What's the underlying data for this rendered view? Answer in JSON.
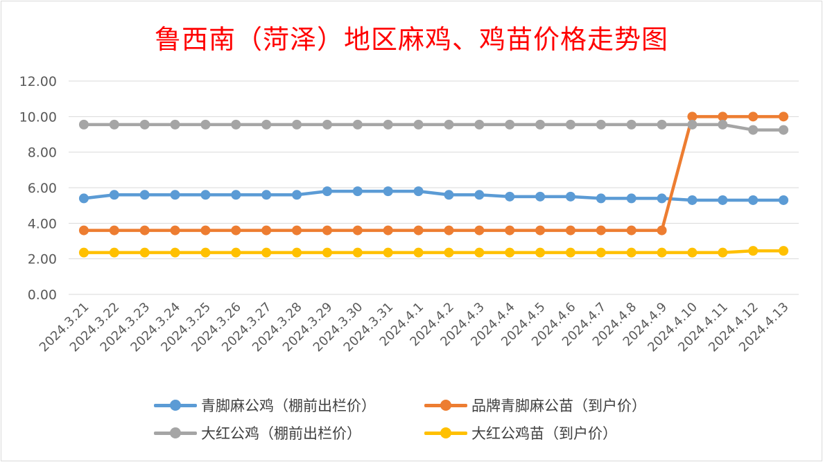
{
  "chart_data": {
    "type": "line",
    "title": "鲁西南（菏泽）地区麻鸡、鸡苗价格走势图",
    "categories": [
      "2024.3.21",
      "2024.3.22",
      "2024.3.23",
      "2024.3.24",
      "2024.3.25",
      "2024.3.26",
      "2024.3.27",
      "2024.3.28",
      "2024.3.29",
      "2024.3.30",
      "2024.3.31",
      "2024.4.1",
      "2024.4.2",
      "2024.4.3",
      "2024.4.4",
      "2024.4.5",
      "2024.4.6",
      "2024.4.7",
      "2024.4.8",
      "2024.4.9",
      "2024.4.10",
      "2024.4.11",
      "2024.4.12",
      "2024.4.13"
    ],
    "y_ticks": [
      "0.00",
      "2.00",
      "4.00",
      "6.00",
      "8.00",
      "10.00",
      "12.00"
    ],
    "ylim": [
      0,
      12
    ],
    "grid": true,
    "legend_position": "bottom",
    "series": [
      {
        "name": "青脚麻公鸡（棚前出栏价）",
        "color": "#5b9bd5",
        "values": [
          5.4,
          5.6,
          5.6,
          5.6,
          5.6,
          5.6,
          5.6,
          5.6,
          5.8,
          5.8,
          5.8,
          5.8,
          5.6,
          5.6,
          5.5,
          5.5,
          5.5,
          5.4,
          5.4,
          5.4,
          5.3,
          5.3,
          5.3,
          5.3
        ]
      },
      {
        "name": "品牌青脚麻公苗（到户价）",
        "color": "#ed7d31",
        "values": [
          3.6,
          3.6,
          3.6,
          3.6,
          3.6,
          3.6,
          3.6,
          3.6,
          3.6,
          3.6,
          3.6,
          3.6,
          3.6,
          3.6,
          3.6,
          3.6,
          3.6,
          3.6,
          3.6,
          3.6,
          10.0,
          10.0,
          10.0,
          10.0
        ]
      },
      {
        "name": "大红公鸡（棚前出栏价）",
        "color": "#a5a5a5",
        "values": [
          9.55,
          9.55,
          9.55,
          9.55,
          9.55,
          9.55,
          9.55,
          9.55,
          9.55,
          9.55,
          9.55,
          9.55,
          9.55,
          9.55,
          9.55,
          9.55,
          9.55,
          9.55,
          9.55,
          9.55,
          9.55,
          9.55,
          9.25,
          9.25
        ]
      },
      {
        "name": "大红公鸡苗（到户价）",
        "color": "#ffc000",
        "values": [
          2.35,
          2.35,
          2.35,
          2.35,
          2.35,
          2.35,
          2.35,
          2.35,
          2.35,
          2.35,
          2.35,
          2.35,
          2.35,
          2.35,
          2.35,
          2.35,
          2.35,
          2.35,
          2.35,
          2.35,
          2.35,
          2.35,
          2.45,
          2.45
        ]
      }
    ]
  }
}
